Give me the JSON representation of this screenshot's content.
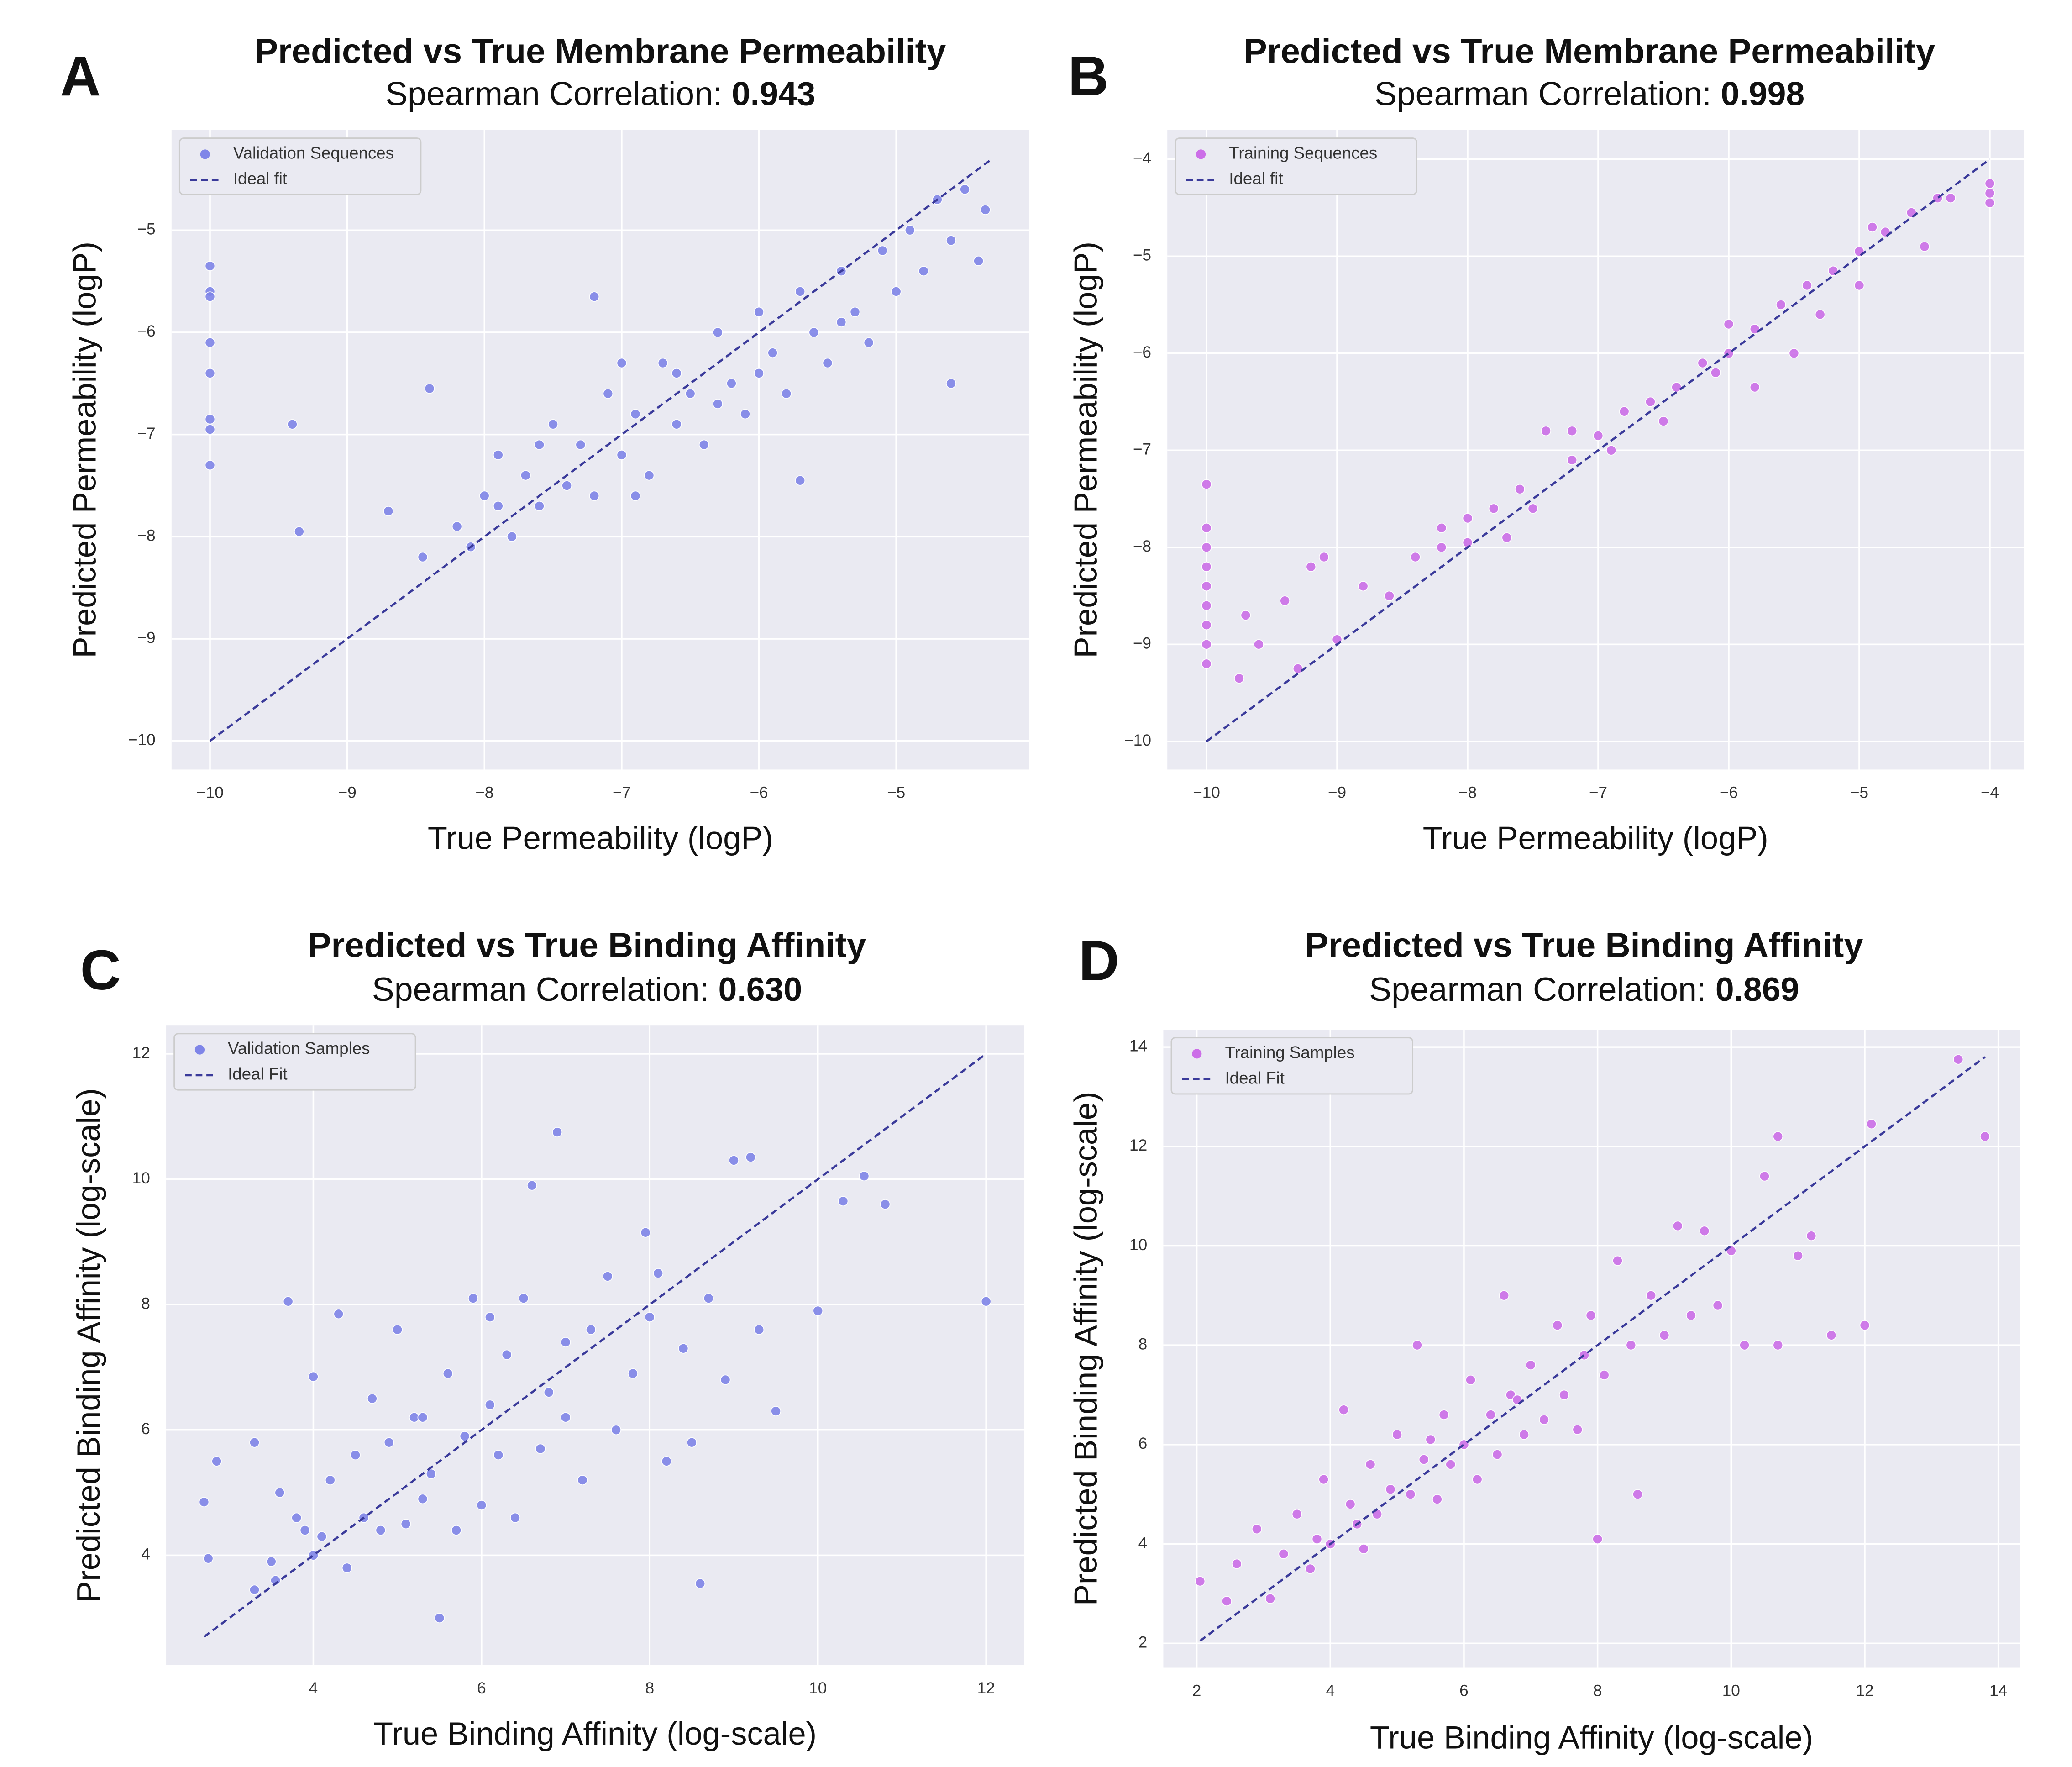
{
  "chart_data": [
    {
      "type": "scatter",
      "panel": "A",
      "title": "Predicted vs True Membrane Permeability",
      "subtitle_label": "Spearman Correlation:",
      "subtitle_value": "0.943",
      "x_label": "True Permeability (logP)",
      "y_label": "Predicted Permeability (logP)",
      "grid": true,
      "legend": "upper left",
      "xlim": [
        -10.28,
        -4.03
      ],
      "ylim": [
        -10.28,
        -4.02
      ],
      "xticks": [
        {
          "value": -10,
          "label": "−10"
        },
        {
          "value": -9,
          "label": "−9"
        },
        {
          "value": -8,
          "label": "−8"
        },
        {
          "value": -7,
          "label": "−7"
        },
        {
          "value": -6,
          "label": "−6"
        },
        {
          "value": -5,
          "label": "−5"
        }
      ],
      "yticks": [
        {
          "value": -10,
          "label": "−10"
        },
        {
          "value": -9,
          "label": "−9"
        },
        {
          "value": -8,
          "label": "−8"
        },
        {
          "value": -7,
          "label": "−7"
        },
        {
          "value": -6,
          "label": "−6"
        },
        {
          "value": -5,
          "label": "−5"
        }
      ],
      "series": [
        {
          "name": "Validation Sequences",
          "color": "#7f85e8",
          "x": [
            -10,
            -10,
            -10,
            -10,
            -10,
            -10,
            -10,
            -10,
            -9.4,
            -9.35,
            -8.7,
            -8.45,
            -8.4,
            -8.2,
            -8.1,
            -8.0,
            -7.9,
            -7.8,
            -7.7,
            -7.6,
            -7.5,
            -7.4,
            -7.3,
            -7.2,
            -7.1,
            -7.0,
            -6.9,
            -6.8,
            -6.7,
            -6.6,
            -6.5,
            -6.4,
            -6.3,
            -6.2,
            -6.1,
            -6.0,
            -5.9,
            -5.8,
            -5.7,
            -5.6,
            -5.5,
            -5.4,
            -5.3,
            -5.2,
            -5.1,
            -5.0,
            -4.9,
            -4.8,
            -4.7,
            -4.6,
            -4.5,
            -4.4,
            -4.35,
            -7.2,
            -5.7,
            -4.6,
            -6.3,
            -7.0,
            -6.0,
            -7.6,
            -6.6,
            -5.4,
            -7.9,
            -6.9
          ],
          "y": [
            -5.35,
            -5.6,
            -5.65,
            -6.1,
            -6.4,
            -6.85,
            -6.95,
            -7.3,
            -6.9,
            -7.95,
            -7.75,
            -8.2,
            -6.55,
            -7.9,
            -8.1,
            -7.6,
            -7.2,
            -8.0,
            -7.4,
            -7.7,
            -6.9,
            -7.5,
            -7.1,
            -7.6,
            -6.6,
            -7.2,
            -6.8,
            -7.4,
            -6.3,
            -6.9,
            -6.6,
            -7.1,
            -6.0,
            -6.5,
            -6.8,
            -5.8,
            -6.2,
            -6.6,
            -5.6,
            -6.0,
            -6.3,
            -5.4,
            -5.8,
            -6.1,
            -5.2,
            -5.6,
            -5.0,
            -5.4,
            -4.7,
            -5.1,
            -4.6,
            -5.3,
            -4.8,
            -5.65,
            -7.45,
            -6.5,
            -6.7,
            -6.3,
            -6.4,
            -7.1,
            -6.4,
            -5.9,
            -7.7,
            -7.6
          ]
        },
        {
          "name": "Ideal fit",
          "color": "#3a3a9a",
          "dashed": true,
          "x": [
            -10,
            -4.3
          ],
          "y": [
            -10,
            -4.3
          ]
        }
      ]
    },
    {
      "type": "scatter",
      "panel": "B",
      "title": "Predicted vs True Membrane Permeability",
      "subtitle_label": "Spearman Correlation:",
      "subtitle_value": "0.998",
      "x_label": "True Permeability (logP)",
      "y_label": "Predicted Permeability (logP)",
      "grid": true,
      "legend": "upper left",
      "xlim": [
        -10.3,
        -3.74
      ],
      "ylim": [
        -10.29,
        -3.7
      ],
      "xticks": [
        {
          "value": -10,
          "label": "−10"
        },
        {
          "value": -9,
          "label": "−9"
        },
        {
          "value": -8,
          "label": "−8"
        },
        {
          "value": -7,
          "label": "−7"
        },
        {
          "value": -6,
          "label": "−6"
        },
        {
          "value": -5,
          "label": "−5"
        },
        {
          "value": -4,
          "label": "−4"
        }
      ],
      "yticks": [
        {
          "value": -10,
          "label": "−10"
        },
        {
          "value": -9,
          "label": "−9"
        },
        {
          "value": -8,
          "label": "−8"
        },
        {
          "value": -7,
          "label": "−7"
        },
        {
          "value": -6,
          "label": "−6"
        },
        {
          "value": -5,
          "label": "−5"
        },
        {
          "value": -4,
          "label": "−4"
        }
      ],
      "series": [
        {
          "name": "Training Sequences",
          "color": "#cc6ee8",
          "x": [
            -10,
            -10,
            -10,
            -10,
            -10,
            -10,
            -10,
            -10,
            -10,
            -9.75,
            -9.7,
            -9.6,
            -9.4,
            -9.3,
            -9.2,
            -9.1,
            -9.0,
            -8.8,
            -8.6,
            -8.4,
            -8.2,
            -8.0,
            -8.0,
            -7.8,
            -7.6,
            -7.5,
            -7.4,
            -7.2,
            -7.0,
            -6.8,
            -6.6,
            -6.4,
            -6.2,
            -6.0,
            -6.0,
            -5.8,
            -5.6,
            -5.4,
            -5.2,
            -5.0,
            -4.8,
            -4.6,
            -4.4,
            -4.3,
            -4,
            -4,
            -4,
            -5.8,
            -5.5,
            -6.5,
            -7.2,
            -8.2,
            -4.5,
            -5.0,
            -6.9,
            -7.7,
            -5.3,
            -6.1,
            -4.9
          ],
          "y": [
            -7.35,
            -7.8,
            -8.0,
            -8.2,
            -8.4,
            -8.6,
            -8.8,
            -9.0,
            -9.2,
            -9.35,
            -8.7,
            -9.0,
            -8.55,
            -9.25,
            -8.2,
            -8.1,
            -8.95,
            -8.4,
            -8.5,
            -8.1,
            -8.0,
            -7.7,
            -7.95,
            -7.6,
            -7.4,
            -7.6,
            -6.8,
            -7.1,
            -6.85,
            -6.6,
            -6.5,
            -6.35,
            -6.1,
            -5.7,
            -6.0,
            -5.75,
            -5.5,
            -5.3,
            -5.15,
            -4.95,
            -4.75,
            -4.55,
            -4.4,
            -4.4,
            -4.25,
            -4.45,
            -4.35,
            -6.35,
            -6.0,
            -6.7,
            -6.8,
            -7.8,
            -4.9,
            -5.3,
            -7.0,
            -7.9,
            -5.6,
            -6.2,
            -4.7
          ]
        },
        {
          "name": "Ideal fit",
          "color": "#3a3a9a",
          "dashed": true,
          "x": [
            -10,
            -4
          ],
          "y": [
            -10,
            -4
          ]
        }
      ]
    },
    {
      "type": "scatter",
      "panel": "C",
      "title": "Predicted vs True Binding Affinity",
      "subtitle_label": "Spearman Correlation:",
      "subtitle_value": "0.630",
      "x_label": "True Binding Affinity (log-scale)",
      "y_label": "Predicted Binding Affinity (log-scale)",
      "grid": true,
      "legend": "upper left",
      "xlim": [
        2.25,
        12.45
      ],
      "ylim": [
        2.25,
        12.45
      ],
      "xticks": [
        4,
        6,
        8,
        10,
        12
      ],
      "yticks": [
        4,
        6,
        8,
        10,
        12
      ],
      "series": [
        {
          "name": "Validation Samples",
          "color": "#7f85e8",
          "x": [
            2.7,
            2.75,
            2.85,
            3.3,
            3.3,
            3.5,
            3.55,
            3.6,
            3.7,
            3.8,
            3.9,
            4.0,
            4.1,
            4.2,
            4.3,
            4.4,
            4.5,
            4.6,
            4.7,
            4.8,
            4.9,
            5.0,
            5.1,
            5.2,
            5.3,
            5.4,
            5.5,
            5.6,
            5.7,
            5.8,
            5.9,
            6.0,
            6.1,
            6.2,
            6.3,
            6.4,
            6.5,
            6.6,
            6.7,
            6.8,
            6.9,
            7.0,
            7.2,
            7.3,
            7.5,
            7.6,
            7.8,
            7.95,
            8.1,
            8.2,
            8.4,
            8.5,
            8.6,
            8.7,
            8.9,
            9.0,
            9.2,
            9.3,
            9.5,
            10.0,
            10.3,
            10.55,
            10.8,
            12.0,
            6.1,
            5.3,
            4.0,
            7.0,
            8.0
          ],
          "y": [
            4.85,
            3.95,
            5.5,
            3.45,
            5.8,
            3.9,
            3.6,
            5.0,
            8.05,
            4.6,
            4.4,
            6.85,
            4.3,
            5.2,
            7.85,
            3.8,
            5.6,
            4.6,
            6.5,
            4.4,
            5.8,
            7.6,
            4.5,
            6.2,
            4.9,
            5.3,
            3.0,
            6.9,
            4.4,
            5.9,
            8.1,
            4.8,
            6.4,
            5.6,
            7.2,
            4.6,
            8.1,
            9.9,
            5.7,
            6.6,
            10.75,
            6.2,
            5.2,
            7.6,
            8.45,
            6.0,
            6.9,
            9.15,
            8.5,
            5.5,
            7.3,
            5.8,
            3.55,
            8.1,
            6.8,
            10.3,
            10.35,
            7.6,
            6.3,
            7.9,
            9.65,
            10.05,
            9.6,
            8.05,
            7.8,
            6.2,
            4.0,
            7.4,
            7.8
          ]
        },
        {
          "name": "Ideal Fit",
          "color": "#3a3a9a",
          "dashed": true,
          "x": [
            2.7,
            12
          ],
          "y": [
            2.7,
            12
          ]
        }
      ]
    },
    {
      "type": "scatter",
      "panel": "D",
      "title": "Predicted vs True Binding Affinity",
      "subtitle_label": "Spearman Correlation:",
      "subtitle_value": "0.869",
      "x_label": "True Binding Affinity (log-scale)",
      "y_label": "Predicted Binding Affinity (log-scale)",
      "grid": true,
      "legend": "upper left",
      "xlim": [
        1.5,
        14.32
      ],
      "ylim": [
        1.51,
        14.35
      ],
      "xticks": [
        2,
        4,
        6,
        8,
        10,
        12,
        14
      ],
      "yticks": [
        2,
        4,
        6,
        8,
        10,
        12,
        14
      ],
      "series": [
        {
          "name": "Training Samples",
          "color": "#cc6ee8",
          "x": [
            2.05,
            2.45,
            2.6,
            2.9,
            3.1,
            3.3,
            3.5,
            3.7,
            3.9,
            4.0,
            4.2,
            4.3,
            4.5,
            4.6,
            4.7,
            4.9,
            5.0,
            5.2,
            5.3,
            5.4,
            5.6,
            5.7,
            5.8,
            6.0,
            6.1,
            6.2,
            6.4,
            6.5,
            6.6,
            6.7,
            6.9,
            7.0,
            7.2,
            7.4,
            7.5,
            7.7,
            7.9,
            8.0,
            8.1,
            8.3,
            8.5,
            8.6,
            8.8,
            9.0,
            9.2,
            9.4,
            9.6,
            9.8,
            10.0,
            10.2,
            10.5,
            10.7,
            10.7,
            11.0,
            11.2,
            11.5,
            12.0,
            12.1,
            13.4,
            13.8,
            5.5,
            6.8,
            4.4,
            7.8,
            3.8
          ],
          "y": [
            3.25,
            2.85,
            3.6,
            4.3,
            2.9,
            3.8,
            4.6,
            3.5,
            5.3,
            4.0,
            6.7,
            4.8,
            3.9,
            5.6,
            4.6,
            5.1,
            6.2,
            5.0,
            8.0,
            5.7,
            4.9,
            6.6,
            5.6,
            6.0,
            7.3,
            5.3,
            6.6,
            5.8,
            9.0,
            7.0,
            6.2,
            7.6,
            6.5,
            8.4,
            7.0,
            6.3,
            8.6,
            4.1,
            7.4,
            9.7,
            8.0,
            5.0,
            9.0,
            8.2,
            10.4,
            8.6,
            10.3,
            8.8,
            9.9,
            8.0,
            11.4,
            12.2,
            8.0,
            9.8,
            10.2,
            8.2,
            8.4,
            12.45,
            13.75,
            12.2,
            6.1,
            6.9,
            4.4,
            7.8,
            4.1
          ]
        },
        {
          "name": "Ideal Fit",
          "color": "#3a3a9a",
          "dashed": true,
          "x": [
            2.05,
            13.8
          ],
          "y": [
            2.05,
            13.8
          ]
        }
      ]
    }
  ]
}
